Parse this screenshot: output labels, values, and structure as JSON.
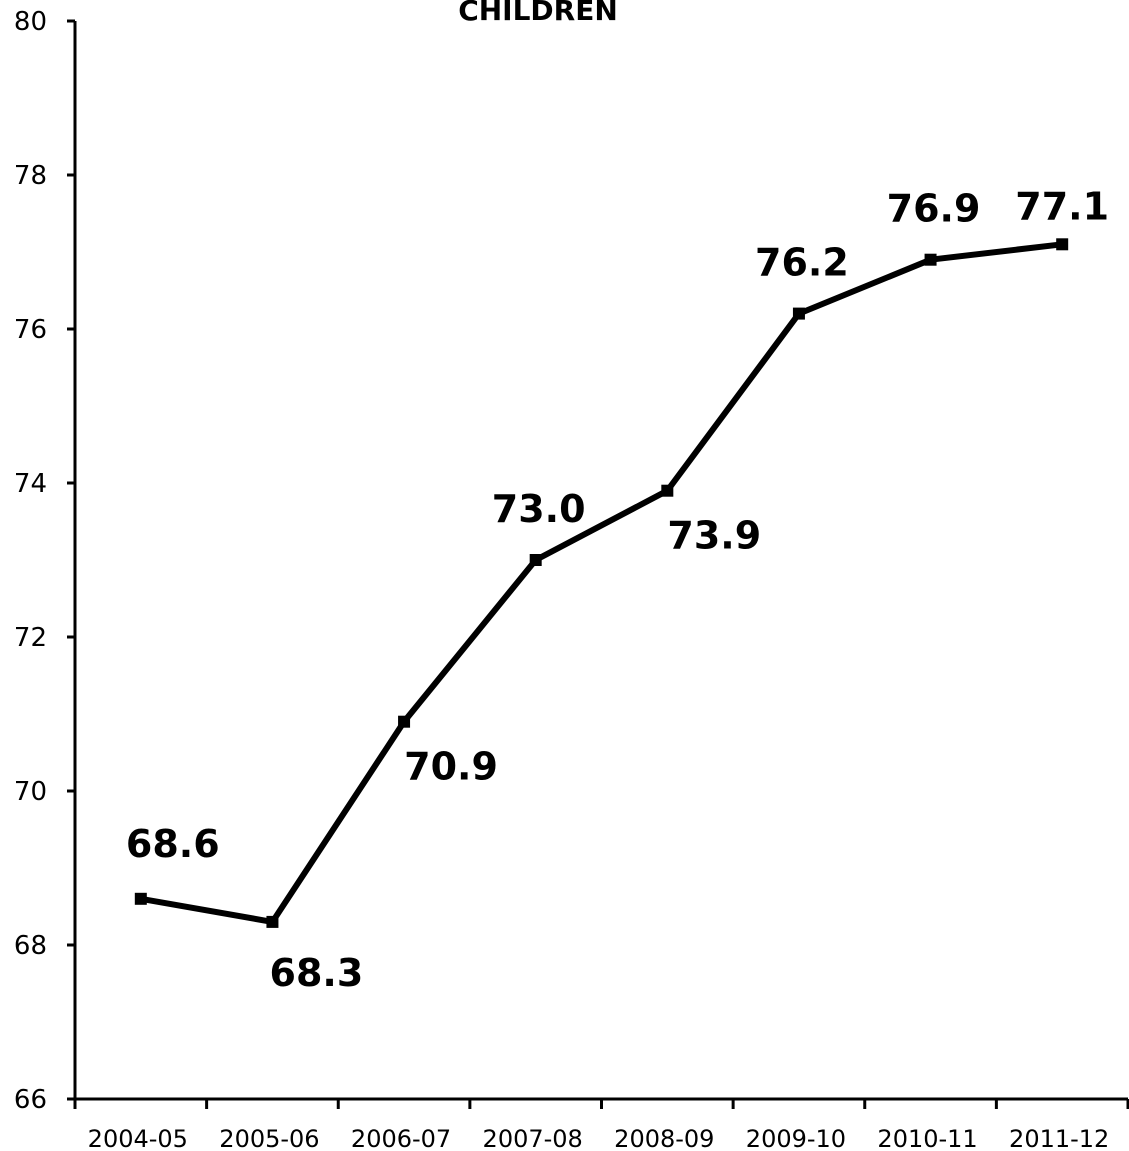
{
  "chart_data": {
    "type": "line",
    "title": "CHILDREN",
    "xlabel": "",
    "ylabel": "",
    "categories": [
      "2004-05",
      "2005-06",
      "2006-07",
      "2007-08",
      "2008-09",
      "2009-10",
      "2010-11",
      "2011-12"
    ],
    "series": [
      {
        "values": [
          68.6,
          68.3,
          70.9,
          73.0,
          73.9,
          76.2,
          76.9,
          77.1
        ],
        "data_labels": [
          "68.6",
          "68.3",
          "70.9",
          "73.0",
          "73.9",
          "76.2",
          "76.9",
          "77.1"
        ],
        "data_label_positions": [
          "above",
          "below",
          "below-right",
          "above",
          "below-right",
          "above",
          "above",
          "above"
        ],
        "color": "#000000"
      }
    ],
    "ylim": [
      66,
      80
    ],
    "yticks": [
      66,
      68,
      70,
      72,
      74,
      76,
      78,
      80
    ],
    "grid": false,
    "legend": "none"
  }
}
